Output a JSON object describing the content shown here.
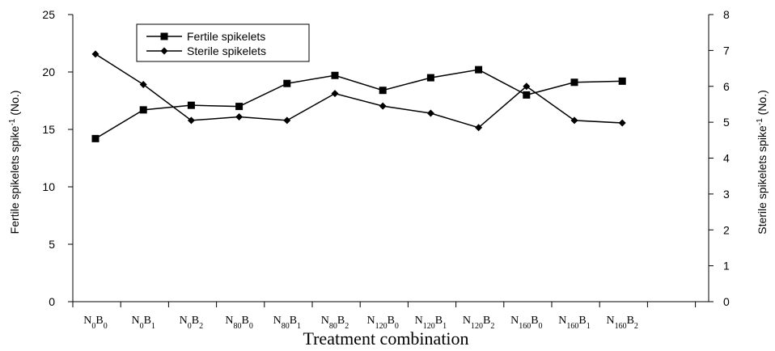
{
  "chart_data": {
    "type": "line",
    "categories": [
      "N0B0",
      "N0B1",
      "N0B2",
      "N80B0",
      "N80B1",
      "N80B2",
      "N120B0",
      "N120B1",
      "N120B2",
      "N160B0",
      "N160B1",
      "N160B2"
    ],
    "category_labels": [
      {
        "base1": "N",
        "sub1": "0",
        "base2": "B",
        "sub2": "0"
      },
      {
        "base1": "N",
        "sub1": "0",
        "base2": "B",
        "sub2": "1"
      },
      {
        "base1": "N",
        "sub1": "0",
        "base2": "B",
        "sub2": "2"
      },
      {
        "base1": "N",
        "sub1": "80",
        "base2": "B",
        "sub2": "0"
      },
      {
        "base1": "N",
        "sub1": "80",
        "base2": "B",
        "sub2": "1"
      },
      {
        "base1": "N",
        "sub1": "80",
        "base2": "B",
        "sub2": "2"
      },
      {
        "base1": "N",
        "sub1": "120",
        "base2": "B",
        "sub2": "0"
      },
      {
        "base1": "N",
        "sub1": "120",
        "base2": "B",
        "sub2": "1"
      },
      {
        "base1": "N",
        "sub1": "120",
        "base2": "B",
        "sub2": "2"
      },
      {
        "base1": "N",
        "sub1": "160",
        "base2": "B",
        "sub2": "0"
      },
      {
        "base1": "N",
        "sub1": "160",
        "base2": "B",
        "sub2": "1"
      },
      {
        "base1": "N",
        "sub1": "160",
        "base2": "B",
        "sub2": "2"
      }
    ],
    "series": [
      {
        "name": "Fertile spikelets",
        "axis": "left",
        "marker": "square",
        "values": [
          14.2,
          16.7,
          17.1,
          17.0,
          19.0,
          19.7,
          18.4,
          19.5,
          20.2,
          18.0,
          19.1,
          19.2
        ]
      },
      {
        "name": "Sterile spikelets",
        "axis": "right",
        "marker": "diamond",
        "values": [
          6.9,
          6.05,
          5.05,
          5.15,
          5.05,
          5.8,
          5.45,
          5.25,
          4.85,
          6.0,
          5.05,
          4.98
        ]
      }
    ],
    "xlabel": "Treatment combination",
    "ylabel_left": {
      "text": "Fertile spikelets spike",
      "sup": "-1",
      "suffix": " (No.)"
    },
    "ylabel_right": {
      "text": "Sterile spikelets spike",
      "sup": "-1",
      "suffix": " (No.)"
    },
    "ylim_left": [
      0,
      25
    ],
    "yticks_left": [
      0,
      5,
      10,
      15,
      20,
      25
    ],
    "ylim_right": [
      0,
      8
    ],
    "yticks_right": [
      0,
      1,
      2,
      3,
      4,
      5,
      6,
      7,
      8
    ],
    "grid": false,
    "legend_position": "top-left",
    "line_color": "#000000"
  }
}
